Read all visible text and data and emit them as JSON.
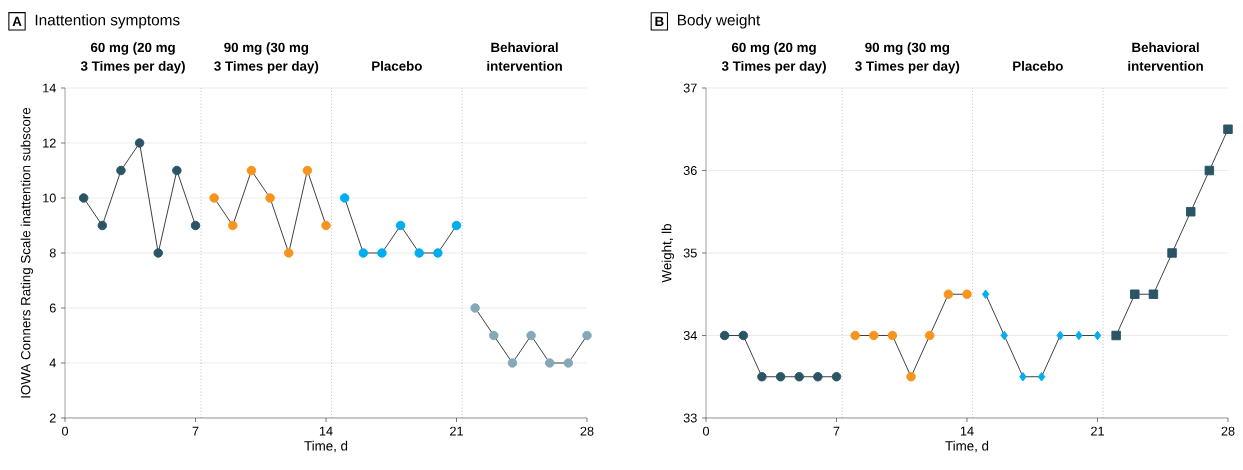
{
  "chart_data": [
    {
      "type": "line",
      "title": "Inattention symptoms",
      "xlabel": "Time, d",
      "ylabel": "IOWA Conners Rating Scale inattention subscore",
      "annotations": [
        "A",
        "60 mg (20 mg",
        "3 Times per day)",
        "90 mg (30 mg",
        "3 Times per day)",
        "Placebo",
        "Behavioral",
        "intervention"
      ],
      "xlim": [
        0,
        28
      ],
      "xticks": [
        0,
        7,
        14,
        21,
        28
      ],
      "ylim": [
        2,
        14
      ],
      "yticks": [
        2,
        4,
        6,
        8,
        10,
        12,
        14
      ],
      "grid": "y",
      "marker": "circle",
      "line_style": "solid",
      "ref_lines": [
        {
          "axis": "x",
          "value": 7.3,
          "line_style": "dotted"
        },
        {
          "axis": "x",
          "value": 14.3,
          "line_style": "dotted"
        },
        {
          "axis": "x",
          "value": 21.3,
          "line_style": "dotted"
        }
      ],
      "series": [
        {
          "color": "#2a5566",
          "x": [
            1,
            2,
            3,
            4,
            5,
            6,
            7
          ],
          "values": [
            10,
            9,
            11,
            12,
            8,
            11,
            9
          ]
        },
        {
          "color": "#f7941d",
          "x": [
            8,
            9,
            10,
            11,
            12,
            13,
            14
          ],
          "values": [
            10,
            9,
            11,
            10,
            8,
            11,
            9
          ]
        },
        {
          "color": "#00aeef",
          "x": [
            15,
            16,
            17,
            18,
            19,
            20,
            21
          ],
          "values": [
            10,
            8,
            8,
            9,
            8,
            8,
            9
          ]
        },
        {
          "color": "#84a8b8",
          "x": [
            22,
            23,
            24,
            25,
            26,
            27,
            28
          ],
          "values": [
            6,
            5,
            4,
            5,
            4,
            4,
            5
          ]
        }
      ]
    },
    {
      "type": "line",
      "title": "Body weight",
      "xlabel": "Time, d",
      "ylabel": "Weight, lb",
      "annotations": [
        "B",
        "60 mg (20 mg",
        "3 Times per day)",
        "90 mg (30 mg",
        "3 Times per day)",
        "Placebo",
        "Behavioral",
        "intervention"
      ],
      "xlim": [
        0,
        28
      ],
      "xticks": [
        0,
        7,
        14,
        21,
        28
      ],
      "ylim": [
        33,
        37
      ],
      "yticks": [
        33,
        34,
        35,
        36,
        37
      ],
      "grid": "y",
      "marker": "circle",
      "line_style": "solid",
      "ref_lines": [
        {
          "axis": "x",
          "value": 7.3,
          "line_style": "dotted"
        },
        {
          "axis": "x",
          "value": 14.3,
          "line_style": "dotted"
        },
        {
          "axis": "x",
          "value": 21.3,
          "line_style": "dotted"
        }
      ],
      "series": [
        {
          "color": "#2a5566",
          "x": [
            1,
            2,
            3,
            4,
            5,
            6,
            7
          ],
          "values": [
            34,
            34,
            33.5,
            33.5,
            33.5,
            33.5,
            33.5
          ]
        },
        {
          "color": "#f7941d",
          "x": [
            8,
            9,
            10,
            11,
            12,
            13,
            14
          ],
          "values": [
            34,
            34,
            34,
            33.5,
            34,
            34.5,
            34.5
          ]
        },
        {
          "color": "#00aeef",
          "marker": "diamond",
          "x": [
            15,
            16,
            17,
            18,
            19,
            20,
            21
          ],
          "values": [
            34.5,
            34,
            33.5,
            33.5,
            34,
            34,
            34
          ]
        },
        {
          "color": "#2a5566",
          "marker": "square",
          "x": [
            22,
            23,
            24,
            25,
            26,
            27,
            28
          ],
          "values": [
            34,
            34.5,
            34.5,
            35,
            35.5,
            36,
            36.5
          ]
        }
      ]
    }
  ]
}
